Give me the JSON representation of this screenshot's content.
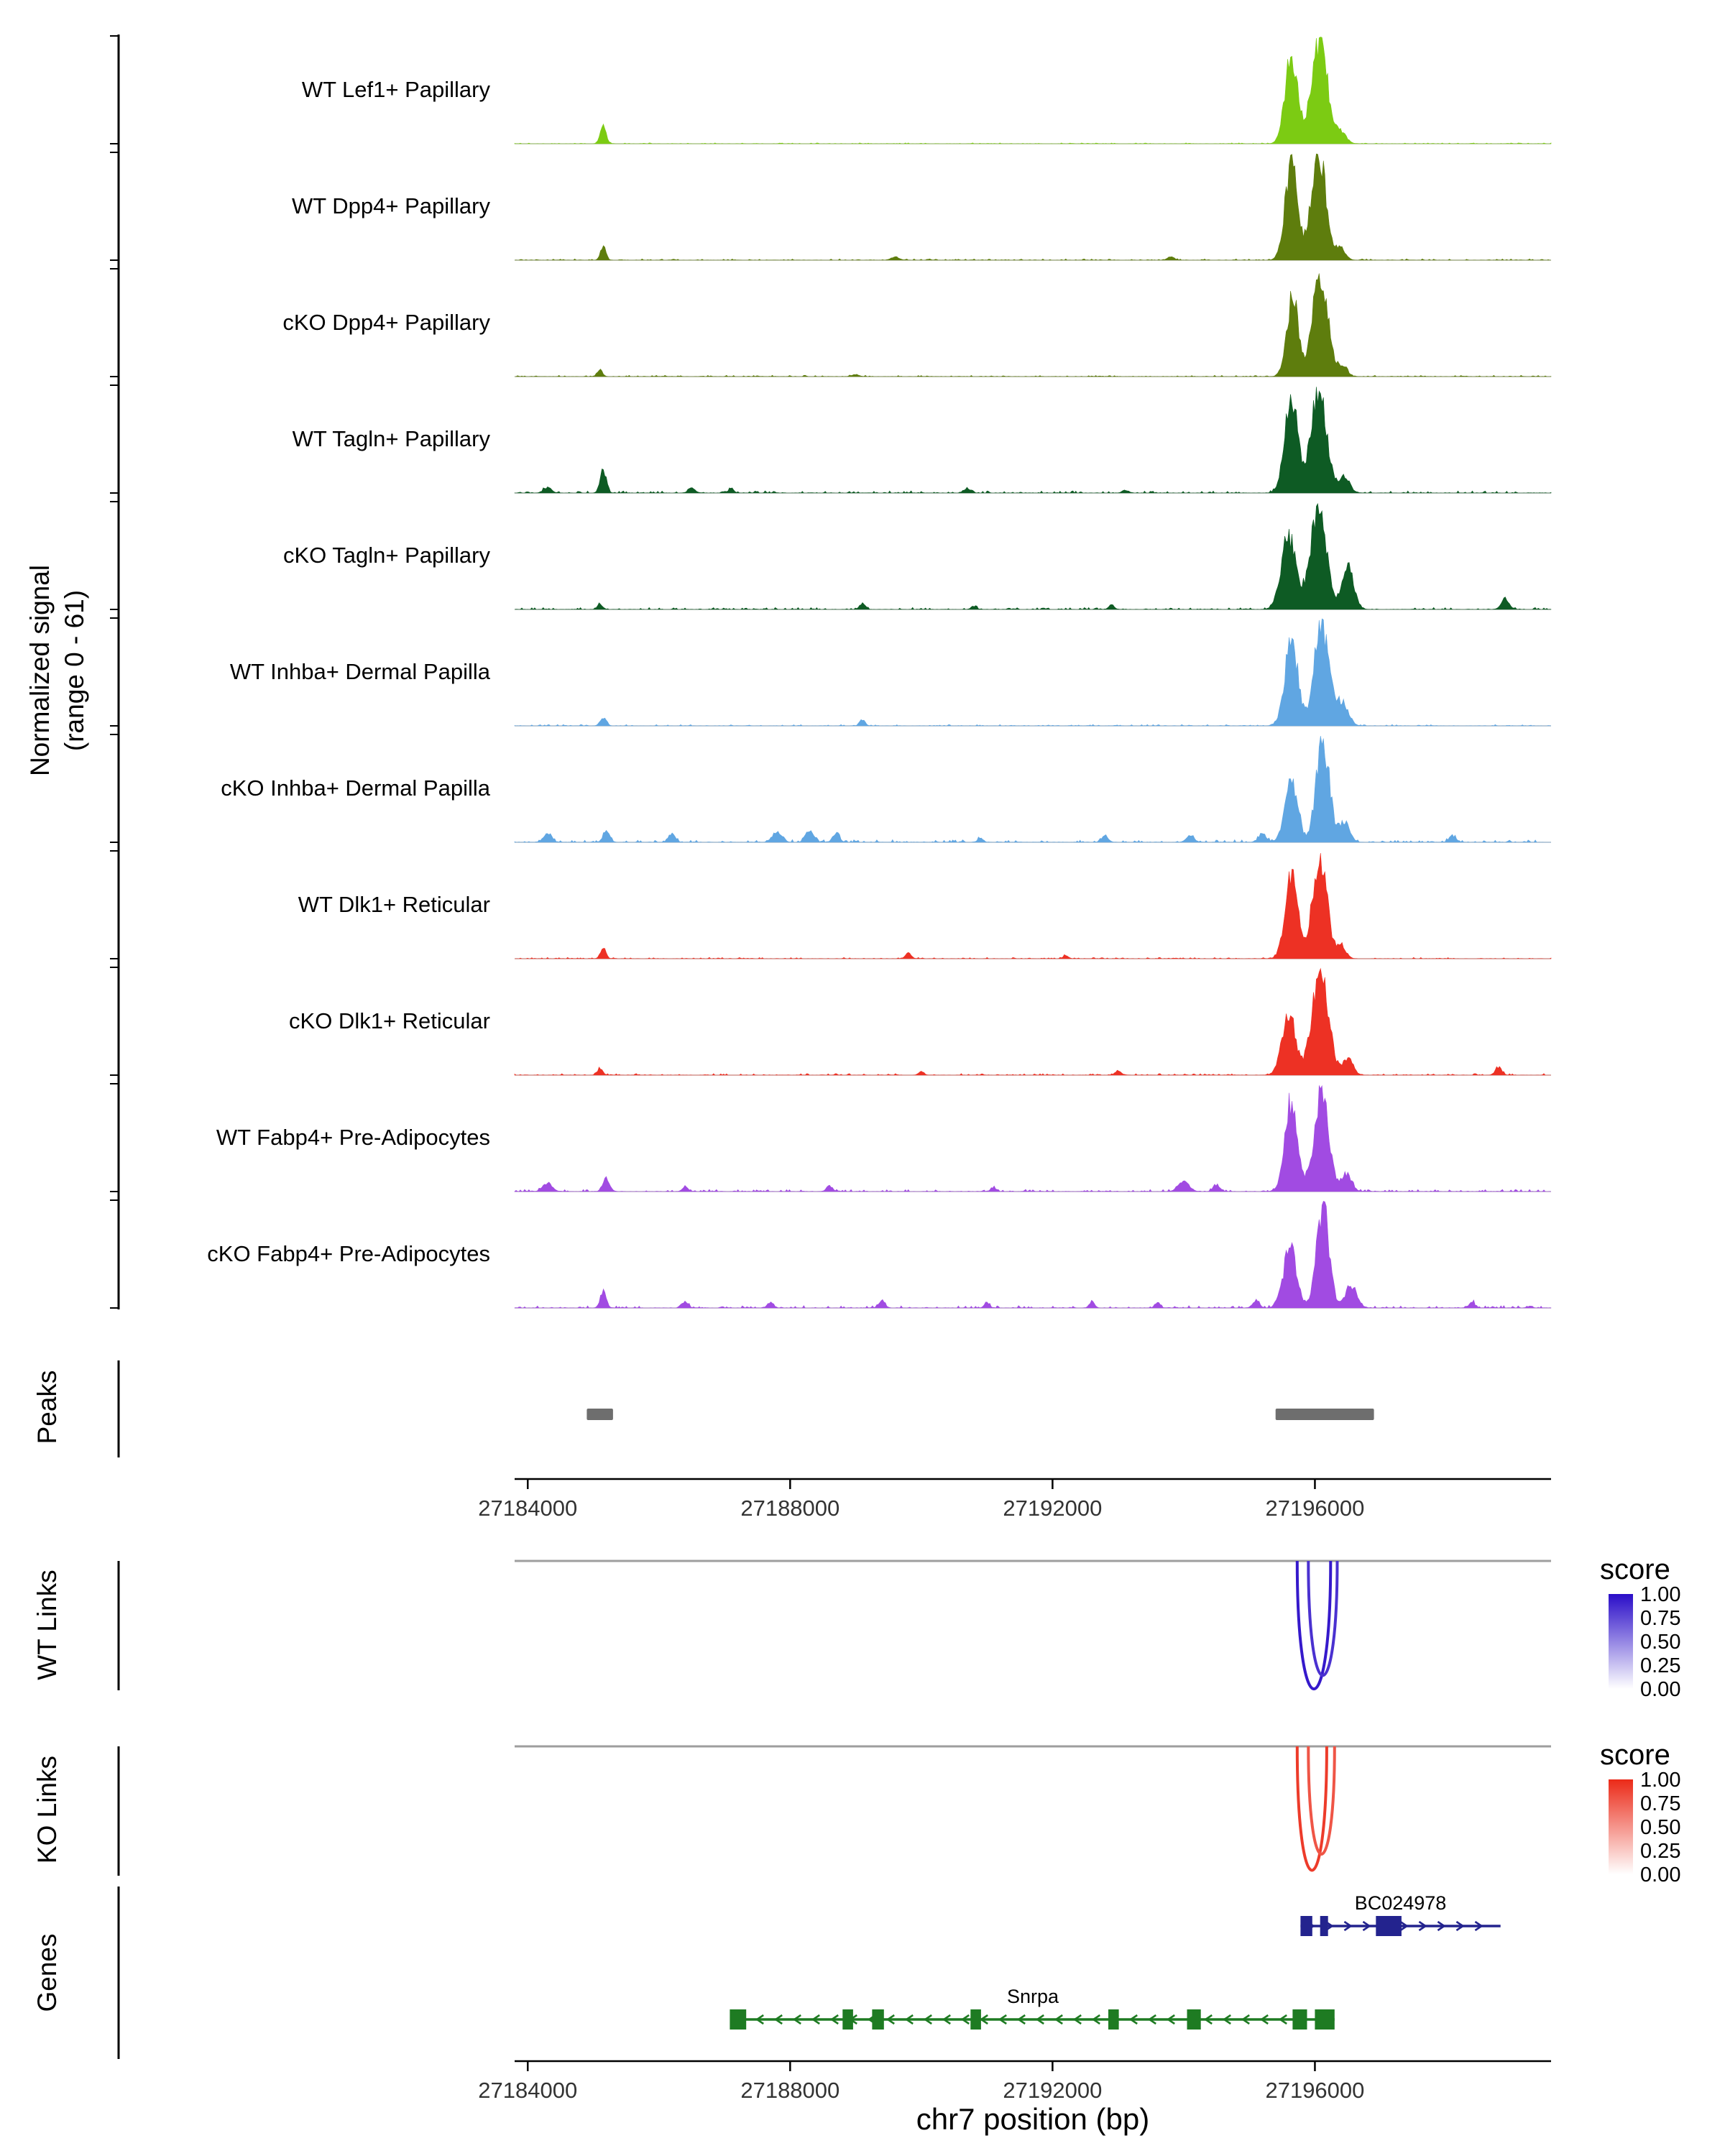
{
  "figure": {
    "signal_label": "Normalized signal\n(range 0 - 61)",
    "sections": {
      "peaks": "Peaks",
      "wt_links": "WT Links",
      "ko_links": "KO Links",
      "genes": "Genes"
    }
  },
  "chart_data": {
    "type": "area",
    "region": {
      "chrom": "chr7",
      "start": 27183800,
      "end": 27199600
    },
    "xlabel": "chr7 position (bp)",
    "ylabel": "Normalized signal (range 0 - 61)",
    "y_range": [
      0,
      61
    ],
    "x_ticks": [
      27184000,
      27188000,
      27192000,
      27196000
    ],
    "tracks": [
      {
        "label": "WT Lef1+ Papillary",
        "color": "#7CCB13",
        "noise": 0.008,
        "peaks": [
          [
            27185150,
            0.16,
            45
          ],
          [
            27195640,
            0.82,
            95
          ],
          [
            27196070,
            0.95,
            120
          ],
          [
            27196400,
            0.1,
            80
          ]
        ]
      },
      {
        "label": "WT Dpp4+ Papillary",
        "color": "#5E7D0D",
        "noise": 0.012,
        "peaks": [
          [
            27185150,
            0.13,
            40
          ],
          [
            27189600,
            0.03,
            60
          ],
          [
            27193800,
            0.03,
            50
          ],
          [
            27195640,
            0.88,
            95
          ],
          [
            27196060,
            0.95,
            115
          ],
          [
            27196400,
            0.1,
            70
          ]
        ]
      },
      {
        "label": "cKO Dpp4+ Papillary",
        "color": "#5E7D0D",
        "noise": 0.012,
        "peaks": [
          [
            27185100,
            0.06,
            40
          ],
          [
            27189000,
            0.02,
            50
          ],
          [
            27195660,
            0.72,
            90
          ],
          [
            27196080,
            0.95,
            115
          ],
          [
            27196420,
            0.1,
            70
          ]
        ]
      },
      {
        "label": "WT Tagln+ Papillary",
        "color": "#0E5B24",
        "noise": 0.02,
        "peaks": [
          [
            27184300,
            0.05,
            60
          ],
          [
            27185150,
            0.22,
            45
          ],
          [
            27186500,
            0.05,
            50
          ],
          [
            27187100,
            0.04,
            40
          ],
          [
            27190700,
            0.04,
            50
          ],
          [
            27193100,
            0.03,
            40
          ],
          [
            27195640,
            0.9,
            100
          ],
          [
            27196060,
            0.95,
            120
          ],
          [
            27196450,
            0.15,
            80
          ]
        ]
      },
      {
        "label": "cKO Tagln+ Papillary",
        "color": "#0E5B24",
        "noise": 0.018,
        "peaks": [
          [
            27185100,
            0.05,
            40
          ],
          [
            27189100,
            0.05,
            45
          ],
          [
            27190800,
            0.03,
            40
          ],
          [
            27192900,
            0.04,
            40
          ],
          [
            27195600,
            0.68,
            110
          ],
          [
            27196050,
            0.95,
            120
          ],
          [
            27196500,
            0.38,
            90
          ],
          [
            27198900,
            0.1,
            60
          ]
        ]
      },
      {
        "label": "WT Inhba+ Dermal Papilla",
        "color": "#60A6E2",
        "noise": 0.012,
        "peaks": [
          [
            27185150,
            0.08,
            45
          ],
          [
            27189100,
            0.06,
            40
          ],
          [
            27195640,
            0.78,
            100
          ],
          [
            27196100,
            0.95,
            110
          ],
          [
            27196420,
            0.22,
            90
          ]
        ]
      },
      {
        "label": "cKO Inhba+ Dermal Papilla",
        "color": "#60A6E2",
        "noise": 0.025,
        "peaks": [
          [
            27184300,
            0.08,
            60
          ],
          [
            27185200,
            0.1,
            50
          ],
          [
            27186200,
            0.08,
            50
          ],
          [
            27187800,
            0.1,
            70
          ],
          [
            27188300,
            0.12,
            60
          ],
          [
            27188700,
            0.08,
            50
          ],
          [
            27190900,
            0.04,
            40
          ],
          [
            27192800,
            0.06,
            50
          ],
          [
            27194100,
            0.06,
            60
          ],
          [
            27195200,
            0.08,
            60
          ],
          [
            27195640,
            0.6,
            95
          ],
          [
            27196120,
            0.95,
            100
          ],
          [
            27196450,
            0.18,
            80
          ],
          [
            27198100,
            0.06,
            50
          ]
        ]
      },
      {
        "label": "WT Dlk1+ Reticular",
        "color": "#ED3124",
        "noise": 0.012,
        "peaks": [
          [
            27185150,
            0.1,
            40
          ],
          [
            27189800,
            0.05,
            45
          ],
          [
            27192200,
            0.03,
            40
          ],
          [
            27195640,
            0.8,
            95
          ],
          [
            27196070,
            0.95,
            110
          ],
          [
            27196400,
            0.12,
            70
          ]
        ]
      },
      {
        "label": "cKO Dlk1+ Reticular",
        "color": "#ED3124",
        "noise": 0.015,
        "peaks": [
          [
            27185100,
            0.06,
            40
          ],
          [
            27190000,
            0.03,
            40
          ],
          [
            27193000,
            0.04,
            45
          ],
          [
            27195600,
            0.58,
            100
          ],
          [
            27196080,
            0.95,
            125
          ],
          [
            27196500,
            0.15,
            80
          ],
          [
            27198800,
            0.07,
            50
          ]
        ]
      },
      {
        "label": "WT Fabp4+ Pre-Adipocytes",
        "color": "#A14BE2",
        "noise": 0.02,
        "peaks": [
          [
            27184300,
            0.08,
            70
          ],
          [
            27185200,
            0.12,
            50
          ],
          [
            27186400,
            0.05,
            40
          ],
          [
            27188600,
            0.05,
            45
          ],
          [
            27191100,
            0.04,
            40
          ],
          [
            27194000,
            0.1,
            80
          ],
          [
            27194500,
            0.06,
            50
          ],
          [
            27195640,
            0.83,
            95
          ],
          [
            27196100,
            0.95,
            110
          ],
          [
            27196480,
            0.16,
            80
          ]
        ]
      },
      {
        "label": "cKO Fabp4+ Pre-Adipocytes",
        "color": "#A14BE2",
        "noise": 0.022,
        "peaks": [
          [
            27185150,
            0.16,
            45
          ],
          [
            27186400,
            0.06,
            45
          ],
          [
            27187700,
            0.05,
            45
          ],
          [
            27189400,
            0.07,
            45
          ],
          [
            27191000,
            0.05,
            40
          ],
          [
            27192600,
            0.06,
            40
          ],
          [
            27193600,
            0.05,
            40
          ],
          [
            27195100,
            0.07,
            50
          ],
          [
            27195620,
            0.55,
            100
          ],
          [
            27196120,
            0.95,
            95
          ],
          [
            27196550,
            0.2,
            90
          ],
          [
            27198400,
            0.05,
            45
          ]
        ]
      }
    ],
    "peaks_track": {
      "color": "#6E6E6E",
      "intervals": [
        [
          27184900,
          27185300
        ],
        [
          27195400,
          27196900
        ]
      ]
    },
    "links": {
      "wt": {
        "max_color": "#2A0DC8",
        "legend_title": "score",
        "legend_ticks": [
          "1.00",
          "0.75",
          "0.50",
          "0.25",
          "0.00"
        ],
        "links": [
          {
            "start": 27195730,
            "end": 27196240,
            "score": 0.95
          },
          {
            "start": 27195900,
            "end": 27196340,
            "score": 0.85
          }
        ]
      },
      "ko": {
        "max_color": "#EB2A18",
        "legend_title": "score",
        "legend_ticks": [
          "1.00",
          "0.75",
          "0.50",
          "0.25",
          "0.00"
        ],
        "links": [
          {
            "start": 27195730,
            "end": 27196180,
            "score": 0.92
          },
          {
            "start": 27195900,
            "end": 27196300,
            "score": 0.8
          }
        ]
      }
    },
    "genes": [
      {
        "name": "BC024978",
        "color": "#23238E",
        "strand": "+",
        "start": 27195780,
        "end": 27198830,
        "exons": [
          [
            27195780,
            27195960
          ],
          [
            27196080,
            27196200
          ],
          [
            27196930,
            27197320
          ]
        ]
      },
      {
        "name": "Snrpa",
        "color": "#1E7B22",
        "strand": "-",
        "start": 27187100,
        "end": 27196300,
        "exons": [
          [
            27187080,
            27187330
          ],
          [
            27188800,
            27188960
          ],
          [
            27189250,
            27189430
          ],
          [
            27190750,
            27190910
          ],
          [
            27192850,
            27193010
          ],
          [
            27194050,
            27194260
          ],
          [
            27195660,
            27195880
          ],
          [
            27196000,
            27196300
          ]
        ]
      }
    ]
  }
}
